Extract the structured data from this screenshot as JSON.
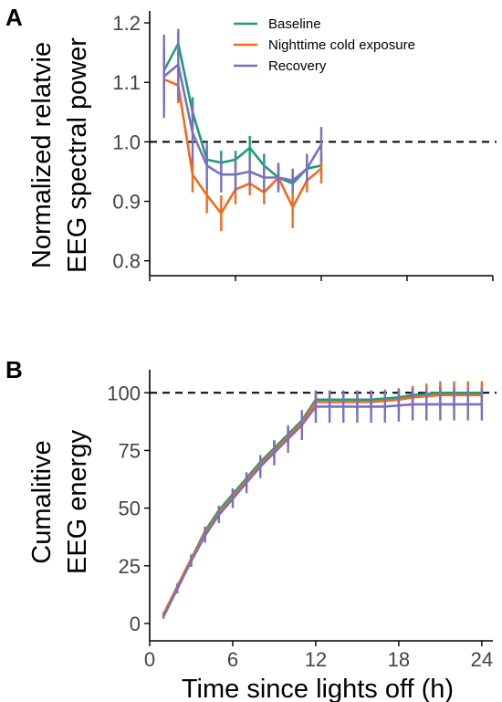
{
  "colors": {
    "baseline": "#1b9e77",
    "cold": "#f26b1d",
    "recovery": "#7b6fc2",
    "axis": "#000000",
    "tick": "#444444"
  },
  "legend_placement": "top-center",
  "chart_data": [
    {
      "panel": "A",
      "type": "line",
      "xlabel": "",
      "ylabel_lines": [
        "Normalized relatvie",
        "EEG spectral power"
      ],
      "xlim": [
        0,
        24
      ],
      "ylim": [
        0.775,
        1.22
      ],
      "yticks": [
        0.8,
        0.9,
        1.0,
        1.1,
        1.2
      ],
      "ytick_labels": [
        "0.8",
        "0.9",
        "1.0",
        "1.1",
        "1.2"
      ],
      "xticks": [
        0,
        6,
        12,
        18,
        24
      ],
      "xtick_labels": [
        "",
        "",
        "",
        "",
        ""
      ],
      "reference_line": 1.0,
      "x": [
        1,
        2,
        3,
        4,
        5,
        6,
        7,
        8,
        9,
        10,
        11,
        12
      ],
      "series": [
        {
          "name": "Baseline",
          "color_key": "baseline",
          "values": [
            1.12,
            1.165,
            1.05,
            0.97,
            0.965,
            0.97,
            0.99,
            0.96,
            0.94,
            0.93,
            0.955,
            0.96
          ],
          "errors": [
            0.04,
            0.02,
            0.025,
            0.02,
            0.02,
            0.015,
            0.02,
            0.02,
            0.02,
            0.02,
            0.02,
            0.02
          ]
        },
        {
          "name": "Nighttime cold exposure",
          "color_key": "cold",
          "values": [
            1.105,
            1.095,
            0.945,
            0.91,
            0.88,
            0.92,
            0.93,
            0.915,
            0.94,
            0.89,
            0.935,
            0.955
          ],
          "errors": [
            0.04,
            0.03,
            0.03,
            0.03,
            0.03,
            0.025,
            0.02,
            0.02,
            0.02,
            0.035,
            0.02,
            0.025
          ]
        },
        {
          "name": "Recovery",
          "color_key": "recovery",
          "values": [
            1.11,
            1.13,
            1.015,
            0.96,
            0.945,
            0.945,
            0.95,
            0.94,
            0.94,
            0.935,
            0.955,
            0.995
          ],
          "errors": [
            0.07,
            0.06,
            0.05,
            0.04,
            0.03,
            0.03,
            0.025,
            0.025,
            0.025,
            0.02,
            0.025,
            0.03
          ]
        }
      ]
    },
    {
      "panel": "B",
      "type": "line",
      "xlabel": "Time since lights off (h)",
      "ylabel_lines": [
        "Cumalitive",
        "EEG energy"
      ],
      "xlim": [
        0,
        24.8
      ],
      "ylim": [
        -2,
        110
      ],
      "yticks": [
        0,
        25,
        50,
        75,
        100
      ],
      "ytick_labels": [
        "0",
        "25",
        "50",
        "75",
        "100"
      ],
      "xticks": [
        0,
        6,
        12,
        18,
        24
      ],
      "xtick_labels": [
        "0",
        "6",
        "12",
        "18",
        "24"
      ],
      "reference_line": 100,
      "x": [
        1,
        2,
        3,
        4,
        5,
        6,
        7,
        8,
        9,
        10,
        11,
        12,
        13,
        14,
        15,
        16,
        17,
        18,
        19,
        20,
        21,
        22,
        23,
        24
      ],
      "series": [
        {
          "name": "Baseline",
          "color_key": "baseline",
          "values": [
            4,
            16,
            28,
            40,
            49,
            56,
            63,
            70,
            76,
            82,
            88,
            97,
            97,
            97,
            97,
            97,
            97.5,
            98,
            99,
            99.5,
            100,
            100,
            100,
            100
          ],
          "errors": [
            0.5,
            1,
            1.5,
            2,
            2,
            2.5,
            2.5,
            3,
            3,
            3,
            3,
            3,
            3,
            3,
            3,
            3,
            3,
            3,
            3,
            3,
            3,
            3,
            3,
            3
          ]
        },
        {
          "name": "Nighttime cold exposure",
          "color_key": "cold",
          "values": [
            4,
            16,
            28,
            39,
            48,
            55,
            62,
            69,
            75,
            81,
            87,
            96,
            96,
            96,
            96,
            96,
            96.5,
            97,
            98,
            98.5,
            99,
            99,
            99,
            99
          ],
          "errors": [
            1,
            1.5,
            2,
            2.5,
            2.5,
            3,
            3,
            3.5,
            3.5,
            4,
            4,
            5,
            5,
            5,
            5,
            5,
            5,
            5,
            5,
            5.5,
            6,
            6,
            6,
            6
          ]
        },
        {
          "name": "Recovery",
          "color_key": "recovery",
          "values": [
            3,
            15,
            27,
            38,
            47,
            54,
            61,
            68,
            74,
            80,
            86,
            94,
            94,
            94,
            94,
            94,
            94,
            94.5,
            95,
            95,
            95,
            95,
            95,
            95
          ],
          "errors": [
            1,
            2,
            2.5,
            3,
            3.5,
            4,
            4.5,
            5,
            5.5,
            6,
            6.5,
            7,
            7,
            7,
            7,
            7,
            7,
            7,
            7,
            7,
            7,
            7,
            7,
            7
          ]
        }
      ]
    }
  ]
}
